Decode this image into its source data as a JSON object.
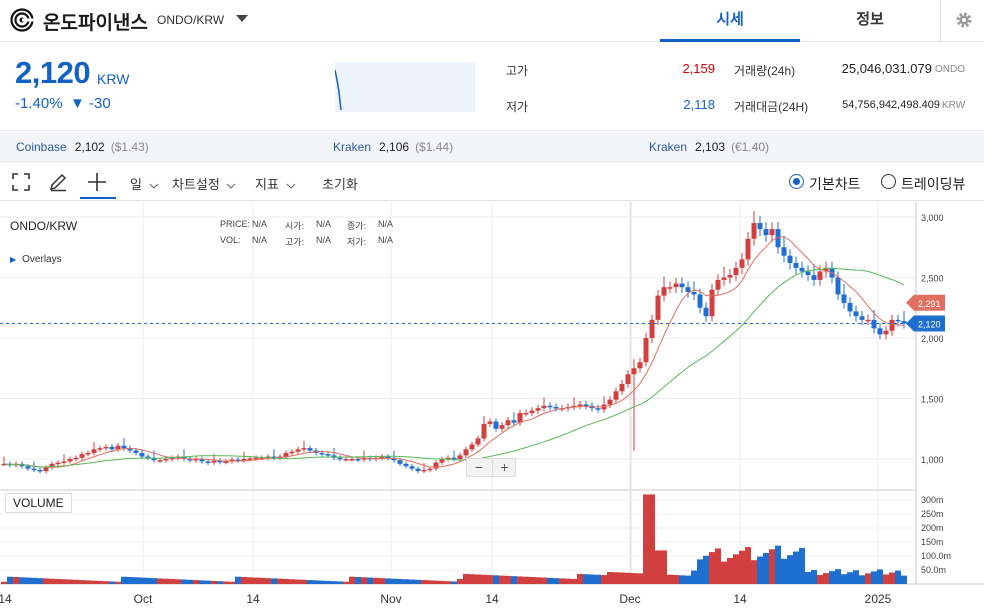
{
  "header": {
    "coin_name": "온도파이낸스",
    "pair": "ONDO/KRW",
    "tabs": [
      {
        "label": "시세",
        "active": true
      },
      {
        "label": "정보",
        "active": false
      }
    ],
    "settings_icon": "gear-icon"
  },
  "ticker": {
    "price": "2,120",
    "unit": "KRW",
    "change_rate": "-1.40%",
    "change_amount": "▼ -30",
    "high_label": "고가",
    "high": "2,159",
    "low_label": "저가",
    "low": "2,118",
    "volume_label": "거래량(24h)",
    "volume": "25,046,031.079",
    "volume_unit": "ONDO",
    "value_label": "거래대금(24H)",
    "value": "54,756,942,498.409",
    "value_unit": "KRW"
  },
  "exchanges": [
    {
      "name": "Coinbase",
      "price": "2,102",
      "fx": "($1.43)"
    },
    {
      "name": "Kraken",
      "price": "2,106",
      "fx": "($1.44)"
    },
    {
      "name": "Kraken",
      "price": "2,103",
      "fx": "(€1.40)"
    }
  ],
  "toolbar": {
    "interval": "일",
    "chart_settings": "차트설정",
    "indicators": "지표",
    "reset": "초기화",
    "mode_basic": "기본차트",
    "mode_trading": "트레이딩뷰"
  },
  "chart_info": {
    "pair": "ONDO/KRW",
    "overlays": "Overlays",
    "price_label": "PRICE:",
    "price": "N/A",
    "open_label": "시가:",
    "open": "N/A",
    "close_label": "종가:",
    "close": "N/A",
    "vol_label": "VOL:",
    "vol": "N/A",
    "high_label": "고가:",
    "high": "N/A",
    "low_label": "저가:",
    "low": "N/A",
    "volume_label": "VOLUME",
    "ma_tag": "2,291",
    "price_tag": "2,120"
  },
  "colors": {
    "up": "#d13f3f",
    "down": "#1f6fd0",
    "ma_short": "#e07060",
    "ma_long": "#58b957",
    "accent": "#1261c4"
  },
  "chart_data": {
    "type": "candlestick",
    "y_ticks": [
      "3,000",
      "2,500",
      "2,000",
      "1,500",
      "1,000"
    ],
    "vol_ticks": [
      "300m",
      "250m",
      "200m",
      "150m",
      "100.0m",
      "50.0m"
    ],
    "x_ticks": [
      "14",
      "Oct",
      "14",
      "Nov",
      "14",
      "Dec",
      "14",
      "2025"
    ],
    "current_price": 2120,
    "ma_last": 2291
  }
}
